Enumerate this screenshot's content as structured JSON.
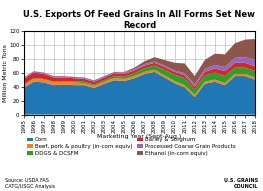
{
  "chart_data": {
    "type": "area",
    "stacked": true,
    "title": "U.S. Exports Of Feed Grains In All Forms Set New Record",
    "x_label": "Marketing Year (Sept-Aug.)",
    "y_label": "Million Metric Tons",
    "categories": [
      "1995",
      "1996",
      "1997",
      "1998",
      "1999",
      "2000",
      "2001",
      "2002",
      "2003",
      "2004",
      "2005",
      "2006",
      "2007",
      "2008",
      "2009",
      "2010",
      "2011",
      "2012",
      "2013",
      "2014",
      "2015",
      "2016",
      "2017",
      "2018"
    ],
    "series": [
      {
        "name": "Corn",
        "values": [
          38,
          47,
          46,
          42,
          43,
          42,
          42,
          38,
          44,
          49,
          48,
          52,
          58,
          61,
          53,
          45,
          39,
          25,
          44,
          47,
          42,
          55,
          55,
          50
        ]
      },
      {
        "name": "Beef, pork & poultry (in-corn equiv)",
        "values": [
          4,
          4,
          4,
          4,
          4,
          4,
          3,
          3,
          3,
          3,
          3,
          3,
          3,
          3,
          3,
          3,
          3,
          3,
          3,
          3,
          3,
          3,
          3,
          3
        ]
      },
      {
        "name": "DDGS & DCSFM",
        "values": [
          1,
          1,
          1,
          1,
          1,
          1,
          2,
          2,
          2,
          3,
          3,
          4,
          5,
          6,
          8,
          9,
          10,
          8,
          9,
          10,
          10,
          9,
          9,
          9
        ]
      },
      {
        "name": "Barley & Sorghum",
        "values": [
          8,
          8,
          7,
          6,
          5,
          5,
          4,
          4,
          4,
          4,
          4,
          4,
          4,
          4,
          4,
          4,
          4,
          4,
          5,
          6,
          7,
          7,
          7,
          7
        ]
      },
      {
        "name": "Processed Coarse Grain Products",
        "values": [
          2,
          2,
          2,
          2,
          2,
          2,
          2,
          2,
          2,
          2,
          2,
          2,
          2,
          2,
          2,
          2,
          3,
          3,
          4,
          5,
          6,
          7,
          8,
          9
        ]
      },
      {
        "name": "Ethanol (in-corn equiv)",
        "values": [
          0,
          0,
          0,
          0,
          0,
          0,
          0,
          0,
          0,
          0,
          1,
          2,
          4,
          6,
          8,
          11,
          14,
          12,
          13,
          16,
          18,
          21,
          25,
          30
        ]
      }
    ],
    "ylim": [
      0,
      120
    ],
    "yticks": [
      0,
      20,
      40,
      60,
      80,
      100,
      120
    ],
    "grid": true,
    "legend": "lower center",
    "annotations": [
      "Source: USDA FAS\nCATG/USGC Analysis",
      "U.S. GRAINS\nCOUNCIL"
    ]
  }
}
